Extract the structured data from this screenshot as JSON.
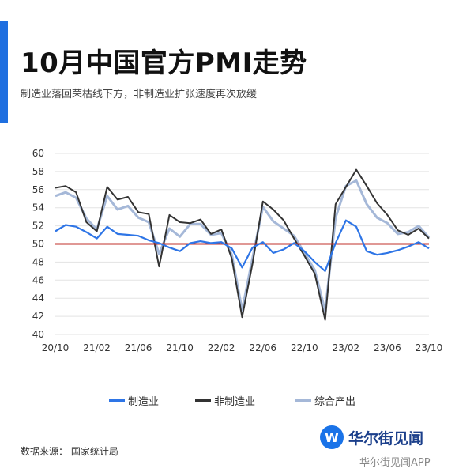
{
  "header": {
    "title": "10月中国官方PMI走势",
    "subtitle": "制造业落回荣枯线下方，非制造业扩张速度再次放缓"
  },
  "colors": {
    "accent": "#1f6fe0",
    "manufacturing": "#2e75e6",
    "non_manufacturing": "#333333",
    "composite": "#a5b8d8",
    "threshold": "#c0302b"
  },
  "chart_data": {
    "type": "line",
    "x": [
      "20/10",
      "20/11",
      "20/12",
      "21/01",
      "21/02",
      "21/03",
      "21/04",
      "21/05",
      "21/06",
      "21/07",
      "21/08",
      "21/09",
      "21/10",
      "21/11",
      "21/12",
      "22/01",
      "22/02",
      "22/03",
      "22/04",
      "22/05",
      "22/06",
      "22/07",
      "22/08",
      "22/09",
      "22/10",
      "22/11",
      "22/12",
      "23/01",
      "23/02",
      "23/03",
      "23/04",
      "23/05",
      "23/06",
      "23/07",
      "23/08",
      "23/09",
      "23/10"
    ],
    "x_tick_labels": [
      "20/10",
      "21/02",
      "21/06",
      "21/10",
      "22/02",
      "22/06",
      "22/10",
      "23/02",
      "23/06",
      "23/10"
    ],
    "series": [
      {
        "name": "制造业",
        "color_key": "manufacturing",
        "values": [
          51.4,
          52.1,
          51.9,
          51.3,
          50.6,
          51.9,
          51.1,
          51.0,
          50.9,
          50.4,
          50.1,
          49.6,
          49.2,
          50.1,
          50.3,
          50.1,
          50.2,
          49.5,
          47.4,
          49.6,
          50.2,
          49.0,
          49.4,
          50.1,
          49.2,
          48.0,
          47.0,
          50.1,
          52.6,
          51.9,
          49.2,
          48.8,
          49.0,
          49.3,
          49.7,
          50.2,
          49.5
        ]
      },
      {
        "name": "非制造业",
        "color_key": "non_manufacturing",
        "values": [
          56.2,
          56.4,
          55.7,
          52.4,
          51.4,
          56.3,
          54.9,
          55.2,
          53.5,
          53.3,
          47.5,
          53.2,
          52.4,
          52.3,
          52.7,
          51.1,
          51.6,
          48.4,
          41.9,
          47.8,
          54.7,
          53.8,
          52.6,
          50.6,
          48.7,
          46.7,
          41.6,
          54.4,
          56.3,
          58.2,
          56.4,
          54.5,
          53.2,
          51.5,
          51.0,
          51.7,
          50.6
        ]
      },
      {
        "name": "综合产出",
        "color_key": "composite",
        "values": [
          55.3,
          55.7,
          55.1,
          52.8,
          51.6,
          55.3,
          53.8,
          54.2,
          52.9,
          52.4,
          48.9,
          51.7,
          50.8,
          52.2,
          52.2,
          51.0,
          51.2,
          48.8,
          42.7,
          48.4,
          54.1,
          52.5,
          51.7,
          50.9,
          49.0,
          47.1,
          42.6,
          52.9,
          56.4,
          57.0,
          54.4,
          52.9,
          52.3,
          51.1,
          51.3,
          52.0,
          50.7
        ]
      }
    ],
    "threshold": 50,
    "ylim": [
      40,
      60
    ],
    "yticks": [
      40,
      42,
      44,
      46,
      48,
      50,
      52,
      54,
      56,
      58,
      60
    ],
    "grid": true,
    "legend_position": "bottom"
  },
  "footer": {
    "source": "数据来源：  国家统计局",
    "brand_logo": "W",
    "brand_name": "华尔街见闻",
    "watermark": "华尔街见闻APP"
  }
}
